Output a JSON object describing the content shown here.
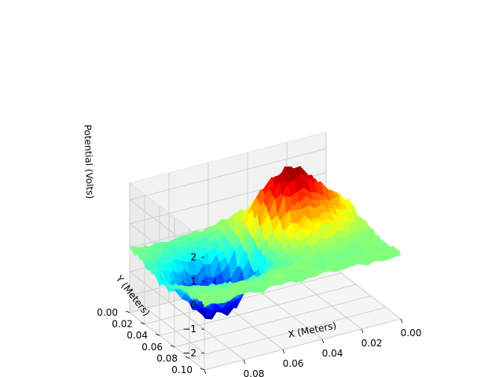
{
  "chart_data": {
    "type": "surface",
    "title": "",
    "xlabel": "X (Meters)",
    "ylabel": "Y (Meters)",
    "zlabel": "Potential (Volts)",
    "xlim": [
      0,
      0.1
    ],
    "ylim": [
      0,
      0.1
    ],
    "zlim": [
      -2.7,
      2.7
    ],
    "x_ticks": [
      "0.00",
      "0.02",
      "0.04",
      "0.06",
      "0.08",
      "0.10"
    ],
    "y_ticks": [
      "0.00",
      "0.02",
      "0.04",
      "0.06",
      "0.08",
      "0.10"
    ],
    "z_ticks": [
      "2",
      "1",
      "0",
      "−1",
      "−2"
    ],
    "grid": true,
    "colormap": "jet",
    "features": [
      {
        "kind": "peak",
        "x": 0.03,
        "y": 0.03,
        "z": 2.5
      },
      {
        "kind": "well",
        "x": 0.07,
        "y": 0.04,
        "z": -2.5
      }
    ]
  }
}
